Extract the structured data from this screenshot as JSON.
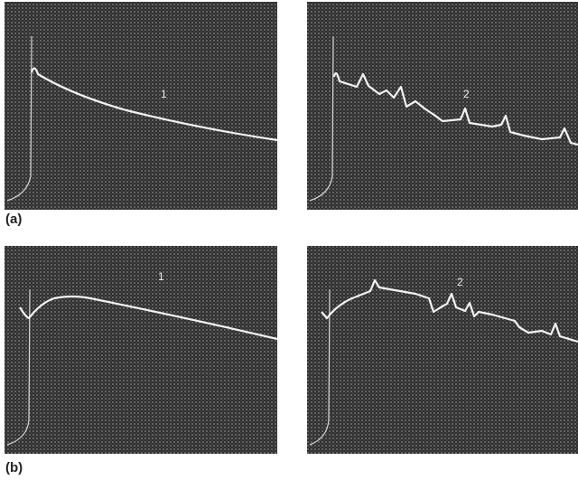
{
  "rows": [
    {
      "label": "(a)",
      "left": {
        "label": "1"
      },
      "right": {
        "label": "2"
      }
    },
    {
      "label": "(b)",
      "left": {
        "label": "1"
      },
      "right": {
        "label": "2"
      }
    }
  ]
}
